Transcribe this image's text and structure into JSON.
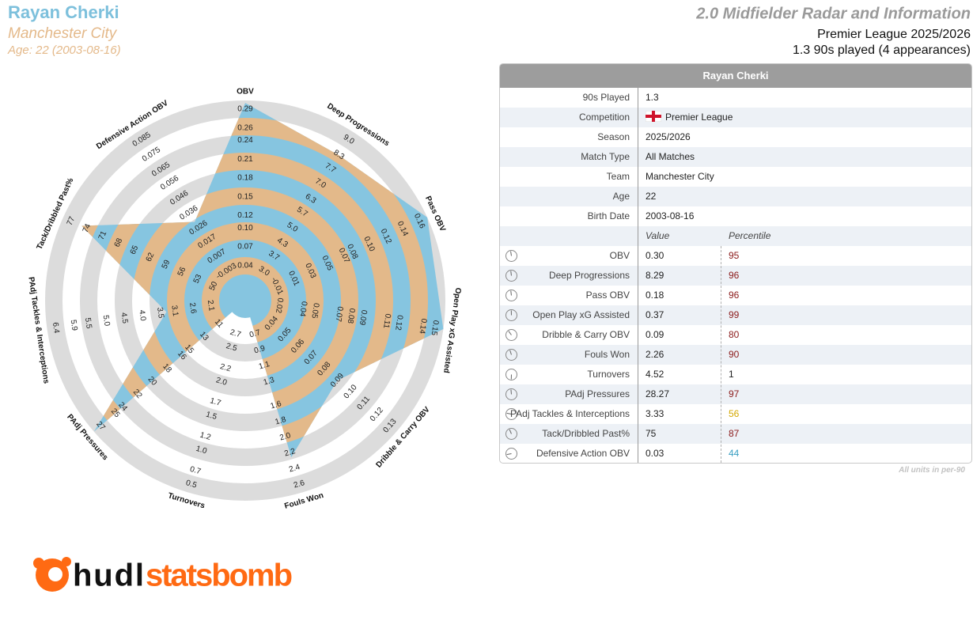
{
  "header": {
    "name": "Rayan Cherki",
    "team": "Manchester City",
    "age": "Age: 22 (2003-08-16)",
    "title": "2.0 Midfielder Radar and Information",
    "competition": "Premier League 2025/2026",
    "played": "1.3 90s played (4 appearances)"
  },
  "chart_data": {
    "type": "radar",
    "categories": [
      "OBV",
      "Deep Progressions",
      "Pass OBV",
      "Open Play xG Assisted",
      "Dribble & Carry OBV",
      "Fouls Won",
      "Turnovers",
      "PAdj Pressures",
      "PAdj Tackles & Interceptions",
      "Tack/Dribbled Past%",
      "Defensive Action OBV"
    ],
    "values": [
      0.3,
      8.29,
      0.18,
      0.37,
      0.09,
      2.26,
      4.52,
      28.27,
      3.33,
      75,
      0.03
    ],
    "value_labels": [
      "0.30",
      "8.29",
      "0.18",
      "0.37",
      "0.09",
      "2.26",
      "4.52",
      "28.27",
      "3.33",
      "75",
      "0.03"
    ],
    "percentiles": [
      95,
      96,
      96,
      99,
      80,
      90,
      1,
      97,
      56,
      87,
      44
    ],
    "percentile_colors": [
      "#8b1a1a",
      "#8b1a1a",
      "#8b1a1a",
      "#8b1a1a",
      "#8b1a1a",
      "#8b1a1a",
      "#222222",
      "#8b1a1a",
      "#d4a800",
      "#8b1a1a",
      "#3a9fc2"
    ],
    "axis_lims": [
      [
        0.012,
        0.29
      ],
      [
        2.33,
        9.0
      ],
      [
        -0.029,
        0.16
      ],
      [
        0.006,
        0.15
      ],
      [
        0.03,
        0.13
      ],
      [
        0.49,
        2.6
      ],
      [
        2.94,
        0.5
      ],
      [
        9.2,
        27
      ],
      [
        1.62,
        6.4
      ],
      [
        47,
        77
      ],
      [
        -0.0128,
        0.085
      ]
    ],
    "axis_ticks": [
      [
        0.04,
        0.07,
        {
          "value": 0.1,
          "label": "0.10"
        },
        0.12,
        0.15,
        0.18,
        0.21,
        0.24,
        0.26,
        0.29
      ],
      [
        {
          "value": 3,
          "label": "3.0"
        },
        3.7,
        4.3,
        {
          "value": 5,
          "label": "5.0"
        },
        5.7,
        6.3,
        {
          "value": 7,
          "label": "7.0"
        },
        7.7,
        8.3,
        {
          "value": 9,
          "label": "9.0"
        }
      ],
      [
        -0.01,
        0.01,
        0.03,
        0.05,
        0.07,
        0.08,
        {
          "value": 0.1,
          "label": "0.10"
        },
        0.12,
        0.14,
        0.16
      ],
      [
        0.02,
        0.04,
        0.05,
        0.07,
        0.08,
        0.09,
        0.11,
        0.12,
        0.14,
        0.15
      ],
      [
        0.04,
        0.05,
        0.06,
        0.07,
        0.08,
        0.09,
        {
          "value": 0.1,
          "label": "0.10"
        },
        0.11,
        0.12,
        0.13
      ],
      [
        0.7,
        0.9,
        1.1,
        1.3,
        1.6,
        1.8,
        {
          "value": 2,
          "label": "2.0"
        },
        2.2,
        2.4,
        2.6
      ],
      [
        2.7,
        2.5,
        2.2,
        {
          "value": 2,
          "label": "2.0"
        },
        1.7,
        1.5,
        1.2,
        {
          "value": 1,
          "label": "1.0"
        },
        0.7,
        0.5
      ],
      [
        11,
        13,
        15,
        16,
        18,
        20,
        22,
        24,
        25,
        27
      ],
      [
        2.1,
        2.6,
        3.1,
        3.5,
        {
          "value": 4,
          "label": "4.0"
        },
        4.5,
        {
          "value": 5,
          "label": "5.0"
        },
        5.5,
        5.9,
        6.4
      ],
      [
        50,
        53,
        56,
        59,
        62,
        65,
        68,
        71,
        74,
        77
      ],
      [
        -0.003,
        0.007,
        0.017,
        0.026,
        0.036,
        0.046,
        0.056,
        0.065,
        0.075,
        0.085
      ]
    ],
    "fill_colors": [
      "#86c5e0",
      "#e3b98a"
    ],
    "ring_color": "#dcdcdc"
  },
  "table": {
    "title": "Rayan Cherki",
    "rows": [
      [
        "90s Played",
        "1.3"
      ],
      [
        "Competition",
        "Premier League"
      ],
      [
        "Season",
        "2025/2026"
      ],
      [
        "Match Type",
        "All Matches"
      ],
      [
        "Team",
        "Manchester City"
      ],
      [
        "Age",
        "22"
      ],
      [
        "Birth Date",
        "2003-08-16"
      ]
    ],
    "columns": [
      "Value",
      "Percentile"
    ],
    "footnote": "All units in per-90"
  },
  "logo": {
    "left": "hudl",
    "right": "statsbomb"
  }
}
